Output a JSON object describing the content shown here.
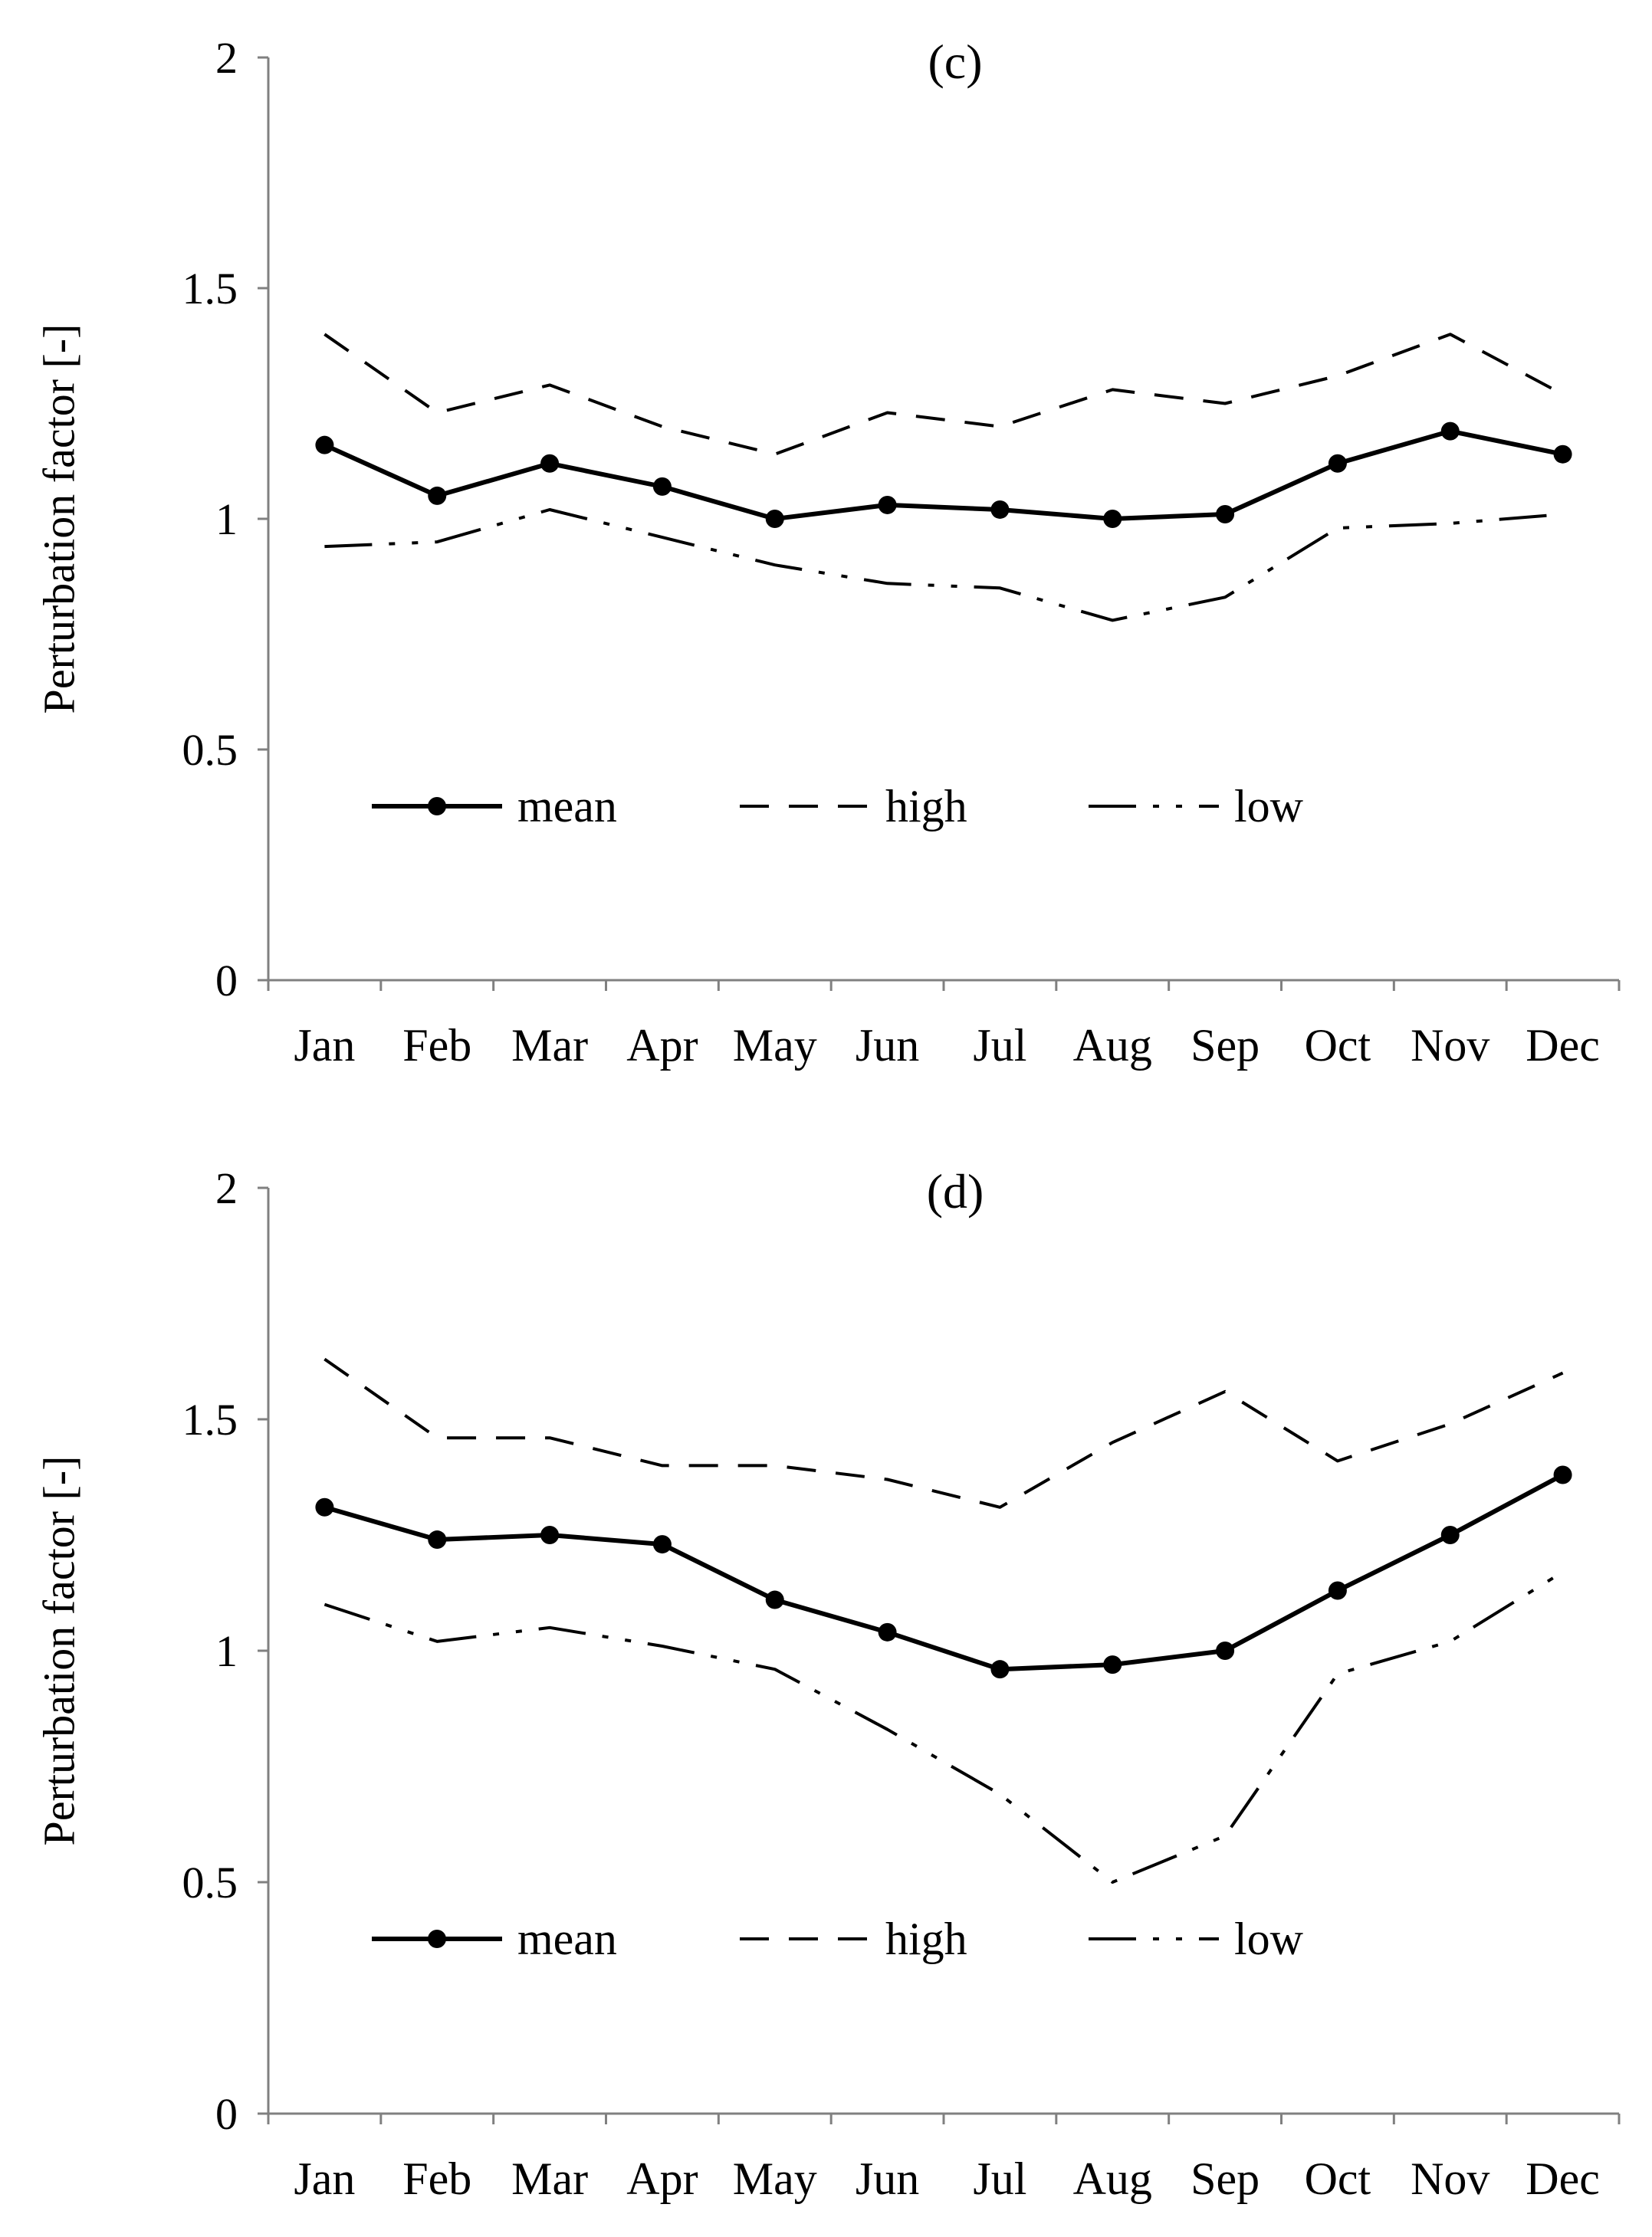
{
  "chart_data": [
    {
      "type": "line",
      "title": "(c)",
      "xlabel": "",
      "ylabel": "Perturbation factor [-]",
      "ylim": [
        0,
        2
      ],
      "yticks": [
        "0",
        "0.5",
        "1",
        "1.5",
        "2"
      ],
      "categories": [
        "Jan",
        "Feb",
        "Mar",
        "Apr",
        "May",
        "Jun",
        "Jul",
        "Aug",
        "Sep",
        "Oct",
        "Nov",
        "Dec"
      ],
      "grid": false,
      "legend": "lower-left, horizontal",
      "series": [
        {
          "name": "mean",
          "style": "solid-markers",
          "values": [
            1.16,
            1.05,
            1.12,
            1.07,
            1.0,
            1.03,
            1.02,
            1.0,
            1.01,
            1.12,
            1.19,
            1.14
          ]
        },
        {
          "name": "high",
          "style": "dashed",
          "values": [
            1.4,
            1.23,
            1.29,
            1.2,
            1.14,
            1.23,
            1.2,
            1.28,
            1.25,
            1.31,
            1.4,
            1.27
          ]
        },
        {
          "name": "low",
          "style": "dash-dot-dot",
          "values": [
            0.94,
            0.95,
            1.02,
            0.96,
            0.9,
            0.86,
            0.85,
            0.78,
            0.83,
            0.98,
            0.99,
            1.01
          ]
        }
      ]
    },
    {
      "type": "line",
      "title": "(d)",
      "xlabel": "",
      "ylabel": "Perturbation factor [-]",
      "ylim": [
        0,
        2
      ],
      "yticks": [
        "0",
        "0.5",
        "1",
        "1.5",
        "2"
      ],
      "categories": [
        "Jan",
        "Feb",
        "Mar",
        "Apr",
        "May",
        "Jun",
        "Jul",
        "Aug",
        "Sep",
        "Oct",
        "Nov",
        "Dec"
      ],
      "grid": false,
      "legend": "lower-left, horizontal",
      "series": [
        {
          "name": "mean",
          "style": "solid-markers",
          "values": [
            1.31,
            1.24,
            1.25,
            1.23,
            1.11,
            1.04,
            0.96,
            0.97,
            1.0,
            1.13,
            1.25,
            1.38
          ]
        },
        {
          "name": "high",
          "style": "dashed",
          "values": [
            1.63,
            1.46,
            1.46,
            1.4,
            1.4,
            1.37,
            1.31,
            1.45,
            1.56,
            1.41,
            1.49,
            1.6
          ]
        },
        {
          "name": "low",
          "style": "dash-dot-dot",
          "values": [
            1.1,
            1.02,
            1.05,
            1.01,
            0.96,
            0.83,
            0.69,
            0.5,
            0.6,
            0.95,
            1.02,
            1.17
          ]
        }
      ]
    }
  ]
}
